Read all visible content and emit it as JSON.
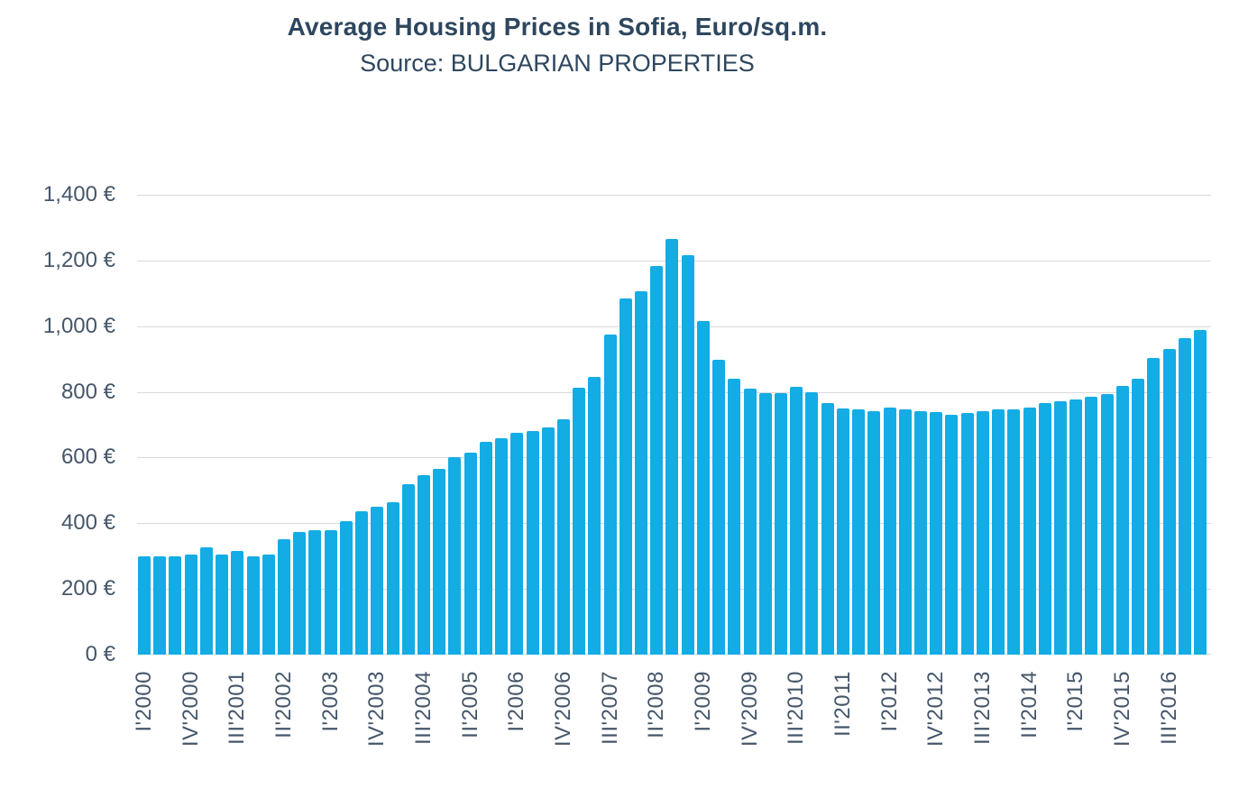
{
  "chart_data": {
    "type": "bar",
    "title": "Average Housing Prices in Sofia, Euro/sq.m.",
    "subtitle": "Source: BULGARIAN PROPERTIES",
    "ylim": [
      0,
      1400
    ],
    "y_tick_step": 200,
    "y_tick_labels": [
      "0 €",
      "200 €",
      "400 €",
      "600 €",
      "800 €",
      "1,000 €",
      "1,200 €",
      "1,400 €"
    ],
    "x_tick_every": 3,
    "x_tick_labels": [
      "I'2000",
      "IV'2000",
      "III'2001",
      "II'2002",
      "I'2003",
      "IV'2003",
      "III'2004",
      "II'2005",
      "I'2006",
      "IV'2006",
      "III'2007",
      "II'2008",
      "I'2009",
      "IV'2009",
      "III'2010",
      "II'2011",
      "I'2012",
      "IV'2012",
      "III'2013",
      "II'2014",
      "I'2015",
      "IV'2015",
      "III'2016"
    ],
    "categories": [
      "I'2000",
      "II'2000",
      "III'2000",
      "IV'2000",
      "I'2001",
      "II'2001",
      "III'2001",
      "IV'2001",
      "I'2002",
      "II'2002",
      "III'2002",
      "IV'2002",
      "I'2003",
      "II'2003",
      "III'2003",
      "IV'2003",
      "I'2004",
      "II'2004",
      "III'2004",
      "IV'2004",
      "I'2005",
      "II'2005",
      "III'2005",
      "IV'2005",
      "I'2006",
      "II'2006",
      "III'2006",
      "IV'2006",
      "I'2007",
      "II'2007",
      "III'2007",
      "IV'2007",
      "I'2008",
      "II'2008",
      "III'2008",
      "IV'2008",
      "I'2009",
      "II'2009",
      "III'2009",
      "IV'2009",
      "I'2010",
      "II'2010",
      "III'2010",
      "IV'2010",
      "I'2011",
      "II'2011",
      "III'2011",
      "IV'2011",
      "I'2012",
      "II'2012",
      "III'2012",
      "IV'2012",
      "I'2013",
      "II'2013",
      "III'2013",
      "IV'2013",
      "I'2014",
      "II'2014",
      "III'2014",
      "IV'2014",
      "I'2015",
      "II'2015",
      "III'2015",
      "IV'2015",
      "I'2016",
      "II'2016",
      "III'2016",
      "IV'2016",
      "I'2017"
    ],
    "values": [
      300,
      300,
      298,
      305,
      327,
      305,
      315,
      300,
      305,
      350,
      372,
      378,
      380,
      406,
      437,
      450,
      465,
      520,
      546,
      565,
      600,
      614,
      648,
      660,
      676,
      680,
      691,
      717,
      813,
      845,
      974,
      1083,
      1106,
      1183,
      1265,
      1217,
      1016,
      897,
      839,
      810,
      796,
      796,
      814,
      800,
      767,
      750,
      746,
      742,
      752,
      747,
      741,
      738,
      730,
      735,
      741,
      746,
      748,
      753,
      765,
      771,
      777,
      784,
      793,
      818,
      840,
      903,
      930,
      963,
      987
    ],
    "grid": true,
    "legend": false,
    "colors": {
      "bar": "#13ACE5",
      "gridline": "#D7DADD",
      "axis_text": "#45566A",
      "title_text": "#2E475F",
      "background": "#FFFFFF"
    }
  }
}
